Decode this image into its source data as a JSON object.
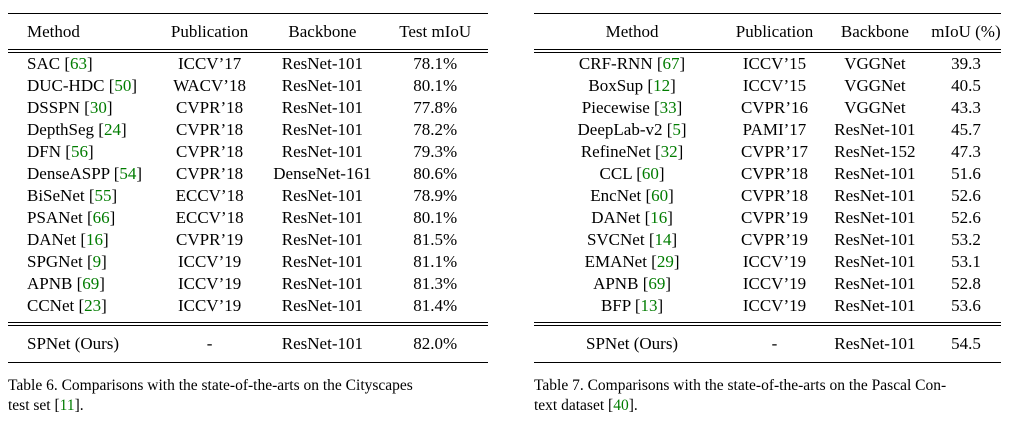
{
  "colors": {
    "citation_green": "#007C00",
    "text_black": "#000000",
    "background": "#ffffff"
  },
  "tables": [
    {
      "name": "table6",
      "columns": [
        "Method",
        "Publication",
        "Backbone",
        "Test mIoU"
      ],
      "rows": [
        {
          "method": "SAC",
          "ref": "63",
          "publication": "ICCV’17",
          "backbone": "ResNet-101",
          "score": "78.1%"
        },
        {
          "method": "DUC-HDC",
          "ref": "50",
          "publication": "WACV’18",
          "backbone": "ResNet-101",
          "score": "80.1%"
        },
        {
          "method": "DSSPN",
          "ref": "30",
          "publication": "CVPR’18",
          "backbone": "ResNet-101",
          "score": "77.8%"
        },
        {
          "method": "DepthSeg",
          "ref": "24",
          "publication": "CVPR’18",
          "backbone": "ResNet-101",
          "score": "78.2%"
        },
        {
          "method": "DFN",
          "ref": "56",
          "publication": "CVPR’18",
          "backbone": "ResNet-101",
          "score": "79.3%"
        },
        {
          "method": "DenseASPP",
          "ref": "54",
          "publication": "CVPR’18",
          "backbone": "DenseNet-161",
          "score": "80.6%"
        },
        {
          "method": "BiSeNet",
          "ref": "55",
          "publication": "ECCV’18",
          "backbone": "ResNet-101",
          "score": "78.9%"
        },
        {
          "method": "PSANet",
          "ref": "66",
          "publication": "ECCV’18",
          "backbone": "ResNet-101",
          "score": "80.1%"
        },
        {
          "method": "DANet",
          "ref": "16",
          "publication": "CVPR’19",
          "backbone": "ResNet-101",
          "score": "81.5%"
        },
        {
          "method": "SPGNet",
          "ref": "9",
          "publication": "ICCV’19",
          "backbone": "ResNet-101",
          "score": "81.1%"
        },
        {
          "method": "APNB",
          "ref": "69",
          "publication": "ICCV’19",
          "backbone": "ResNet-101",
          "score": "81.3%"
        },
        {
          "method": "CCNet",
          "ref": "23",
          "publication": "ICCV’19",
          "backbone": "ResNet-101",
          "score": "81.4%"
        }
      ],
      "final_row": {
        "method": "SPNet (Ours)",
        "ref": null,
        "publication": "-",
        "backbone": "ResNet-101",
        "score": "82.0%"
      },
      "caption": [
        {
          "text": "Table 6. Comparisons with the state-of-the-arts on the Cityscapes"
        },
        {
          "br": true
        },
        {
          "text": "test set ["
        },
        {
          "text": "11",
          "green": true
        },
        {
          "text": "]."
        }
      ]
    },
    {
      "name": "table7",
      "columns": [
        "Method",
        "Publication",
        "Backbone",
        "mIoU (%)"
      ],
      "rows": [
        {
          "method": "CRF-RNN",
          "ref": "67",
          "publication": "ICCV’15",
          "backbone": "VGGNet",
          "score": "39.3"
        },
        {
          "method": "BoxSup",
          "ref": "12",
          "publication": "ICCV’15",
          "backbone": "VGGNet",
          "score": "40.5"
        },
        {
          "method": "Piecewise",
          "ref": "33",
          "publication": "CVPR’16",
          "backbone": "VGGNet",
          "score": "43.3"
        },
        {
          "method": "DeepLab-v2",
          "ref": "5",
          "publication": "PAMI’17",
          "backbone": "ResNet-101",
          "score": "45.7"
        },
        {
          "method": "RefineNet",
          "ref": "32",
          "publication": "CVPR’17",
          "backbone": "ResNet-152",
          "score": "47.3"
        },
        {
          "method": "CCL",
          "ref": "60",
          "publication": "CVPR’18",
          "backbone": "ResNet-101",
          "score": "51.6"
        },
        {
          "method": "EncNet",
          "ref": "60",
          "publication": "CVPR’18",
          "backbone": "ResNet-101",
          "score": "52.6"
        },
        {
          "method": "DANet",
          "ref": "16",
          "publication": "CVPR’19",
          "backbone": "ResNet-101",
          "score": "52.6"
        },
        {
          "method": "SVCNet",
          "ref": "14",
          "publication": "CVPR’19",
          "backbone": "ResNet-101",
          "score": "53.2"
        },
        {
          "method": "EMANet",
          "ref": "29",
          "publication": "ICCV’19",
          "backbone": "ResNet-101",
          "score": "53.1"
        },
        {
          "method": "APNB",
          "ref": "69",
          "publication": "ICCV’19",
          "backbone": "ResNet-101",
          "score": "52.8"
        },
        {
          "method": "BFP",
          "ref": "13",
          "publication": "ICCV’19",
          "backbone": "ResNet-101",
          "score": "53.6"
        }
      ],
      "final_row": {
        "method": "SPNet (Ours)",
        "ref": null,
        "publication": "-",
        "backbone": "ResNet-101",
        "score": "54.5"
      },
      "caption": [
        {
          "text": "Table 7. Comparisons with the state-of-the-arts on the Pascal Con-"
        },
        {
          "br": true
        },
        {
          "text": "text dataset ["
        },
        {
          "text": "40",
          "green": true
        },
        {
          "text": "]."
        }
      ]
    }
  ]
}
